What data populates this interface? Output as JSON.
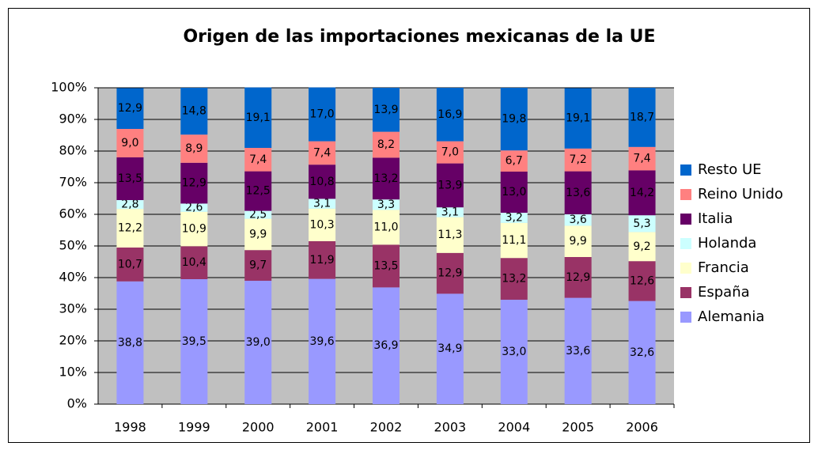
{
  "chart_data": {
    "type": "stacked_bar",
    "title": "Origen de las importaciones mexicanas de la UE",
    "categories": [
      "1998",
      "1999",
      "2000",
      "2001",
      "2002",
      "2003",
      "2004",
      "2005",
      "2006"
    ],
    "ylim": [
      0,
      100
    ],
    "yticks": [
      {
        "value": 0,
        "label": "0%"
      },
      {
        "value": 10,
        "label": "10%"
      },
      {
        "value": 20,
        "label": "20%"
      },
      {
        "value": 30,
        "label": "30%"
      },
      {
        "value": 40,
        "label": "40%"
      },
      {
        "value": 50,
        "label": "50%"
      },
      {
        "value": 60,
        "label": "60%"
      },
      {
        "value": 70,
        "label": "70%"
      },
      {
        "value": 80,
        "label": "80%"
      },
      {
        "value": 90,
        "label": "90%"
      },
      {
        "value": 100,
        "label": "100%"
      }
    ],
    "grid": true,
    "legend": "right",
    "series": [
      {
        "name": "Alemania",
        "color": "#9999ff",
        "values": [
          38.8,
          39.5,
          39.0,
          39.6,
          36.9,
          34.9,
          33.0,
          33.6,
          32.6
        ],
        "value_labels": [
          "38,8",
          "39,5",
          "39,0",
          "39,6",
          "36,9",
          "34,9",
          "33,0",
          "33,6",
          "32,6"
        ]
      },
      {
        "name": "España",
        "color": "#993366",
        "values": [
          10.7,
          10.4,
          9.7,
          11.9,
          13.5,
          12.9,
          13.2,
          12.9,
          12.6
        ],
        "value_labels": [
          "10,7",
          "10,4",
          "9,7",
          "11,9",
          "13,5",
          "12,9",
          "13,2",
          "12,9",
          "12,6"
        ]
      },
      {
        "name": "Francia",
        "color": "#ffffcc",
        "values": [
          12.2,
          10.9,
          9.9,
          10.3,
          11.0,
          11.3,
          11.1,
          9.9,
          9.2
        ],
        "value_labels": [
          "12,2",
          "10,9",
          "9,9",
          "10,3",
          "11,0",
          "11,3",
          "11,1",
          "9,9",
          "9,2"
        ]
      },
      {
        "name": "Holanda",
        "color": "#ccffff",
        "values": [
          2.8,
          2.6,
          2.5,
          3.1,
          3.3,
          3.1,
          3.2,
          3.6,
          5.3
        ],
        "value_labels": [
          "2,8",
          "2,6",
          "2,5",
          "3,1",
          "3,3",
          "3,1",
          "3,2",
          "3,6",
          "5,3"
        ]
      },
      {
        "name": "Italia",
        "color": "#660066",
        "values": [
          13.5,
          12.9,
          12.5,
          10.8,
          13.2,
          13.9,
          13.0,
          13.6,
          14.2
        ],
        "value_labels": [
          "13,5",
          "12,9",
          "12,5",
          "10,8",
          "13,2",
          "13,9",
          "13,0",
          "13,6",
          "14,2"
        ]
      },
      {
        "name": "Reino Unido",
        "color": "#ff8080",
        "values": [
          9.0,
          8.9,
          7.4,
          7.4,
          8.2,
          7.0,
          6.7,
          7.2,
          7.4
        ],
        "value_labels": [
          "9,0",
          "8,9",
          "7,4",
          "7,4",
          "8,2",
          "7,0",
          "6,7",
          "7,2",
          "7,4"
        ]
      },
      {
        "name": "Resto UE",
        "color": "#0066cc",
        "values": [
          12.9,
          14.8,
          19.1,
          17.0,
          13.9,
          16.9,
          19.8,
          19.1,
          18.7
        ],
        "value_labels": [
          "12,9",
          "14,8",
          "19,1",
          "17,0",
          "13,9",
          "16,9",
          "19,8",
          "19,1",
          "18,7"
        ]
      }
    ]
  }
}
